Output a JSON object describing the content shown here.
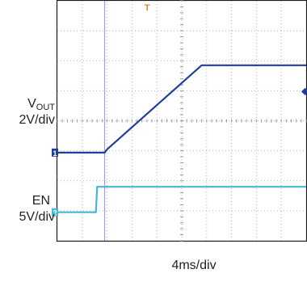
{
  "labels": {
    "ch1_name": "V",
    "ch1_sub": "OUT",
    "ch1_scale": "2V/div",
    "ch2_name": "EN",
    "ch2_scale": "5V/div",
    "time_scale": "4ms/div"
  },
  "chart_data": {
    "type": "line",
    "grid": true,
    "x_divisions": 10,
    "y_divisions": 8,
    "time_per_div_ms": 4,
    "series": [
      {
        "name": "VOUT",
        "color": "#1f3f99",
        "volts_per_div": 2,
        "marker": "1",
        "x_div": [
          0.0,
          1.9,
          2.0,
          5.8,
          10.0
        ],
        "y_div": [
          2.94,
          2.94,
          3.05,
          5.85,
          5.85
        ]
      },
      {
        "name": "EN",
        "color": "#45b7d3",
        "volts_per_div": 5,
        "marker": "2",
        "x_div": [
          0.0,
          1.55,
          1.6,
          10.0
        ],
        "y_div": [
          0.95,
          0.95,
          1.8,
          1.8
        ]
      }
    ],
    "cursor_x_div": 1.9,
    "trigger_marker_x_div": 3.6
  }
}
